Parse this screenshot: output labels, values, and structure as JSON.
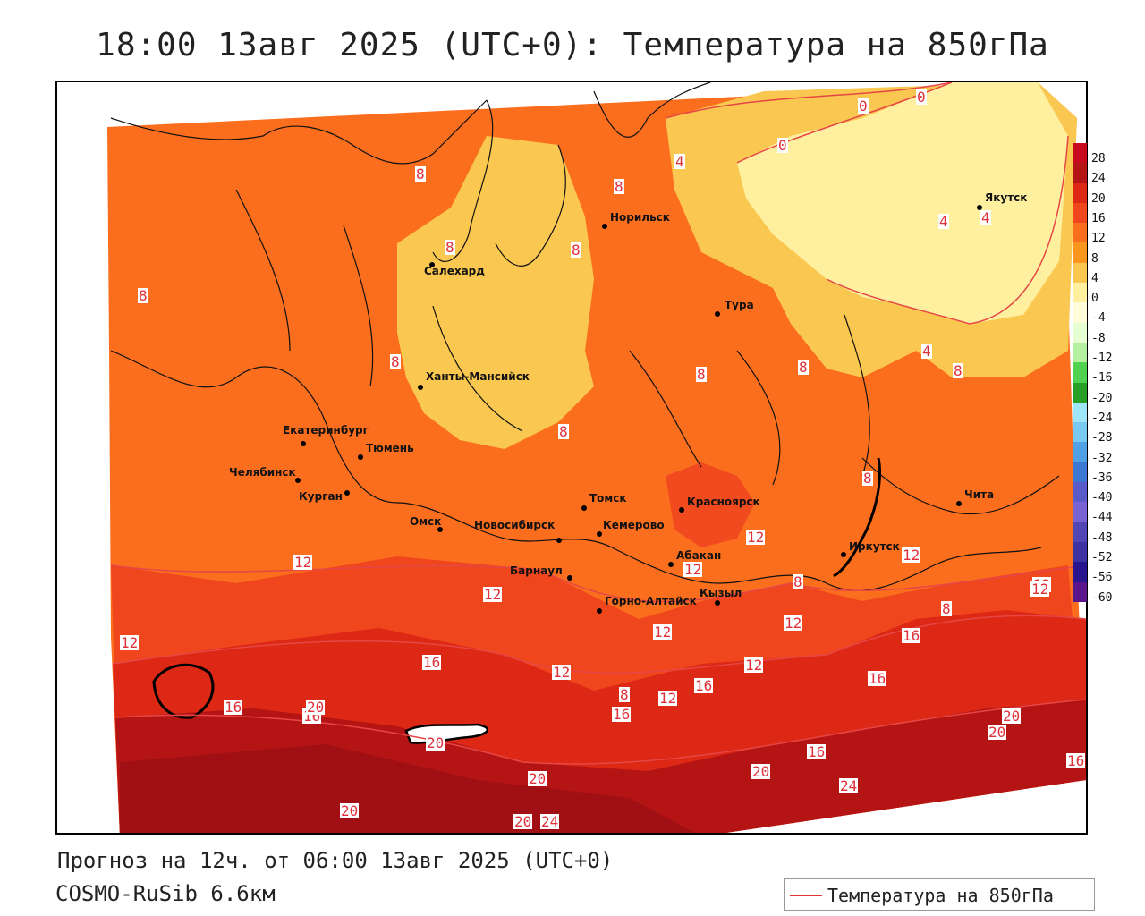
{
  "title": "18:00 13авг 2025 (UTC+0): Температура на 850гПа",
  "footer": {
    "forecast": "Прогноз на 12ч. от 06:00 13авг 2025 (UTC+0)",
    "model": "COSMO-RuSib 6.6км"
  },
  "legend": {
    "label": "Температура на 850гПа",
    "line_color": "#e03838"
  },
  "cities": [
    {
      "name": "Норильск"
    },
    {
      "name": "Якутск"
    },
    {
      "name": "Салехард"
    },
    {
      "name": "Тура"
    },
    {
      "name": "Ханты-Мансийск"
    },
    {
      "name": "Екатеринбург"
    },
    {
      "name": "Тюмень"
    },
    {
      "name": "Челябинск"
    },
    {
      "name": "Курган"
    },
    {
      "name": "Омск"
    },
    {
      "name": "Новосибирск"
    },
    {
      "name": "Томск"
    },
    {
      "name": "Кемерово"
    },
    {
      "name": "Красноярск"
    },
    {
      "name": "Абакан"
    },
    {
      "name": "Барнаул"
    },
    {
      "name": "Горно-Алтайск"
    },
    {
      "name": "Кызыл"
    },
    {
      "name": "Иркутск"
    },
    {
      "name": "Чита"
    }
  ],
  "contour_labels": [
    "0",
    "0",
    "0",
    "4",
    "4",
    "4",
    "4",
    "8",
    "8",
    "8",
    "8",
    "8",
    "8",
    "8",
    "8",
    "8",
    "8",
    "8",
    "8",
    "8",
    "8",
    "12",
    "12",
    "12",
    "12",
    "12",
    "12",
    "12",
    "12",
    "12",
    "12",
    "12",
    "12",
    "12",
    "12",
    "16",
    "16",
    "16",
    "16",
    "16",
    "16",
    "16",
    "16",
    "16",
    "20",
    "20",
    "20",
    "20",
    "20",
    "20",
    "20",
    "20",
    "24",
    "24"
  ],
  "colorbar": {
    "ticks": [
      "28",
      "24",
      "20",
      "16",
      "12",
      "8",
      "4",
      "0",
      "-4",
      "-8",
      "-12",
      "-16",
      "-20",
      "-24",
      "-28",
      "-32",
      "-36",
      "-40",
      "-44",
      "-48",
      "-52",
      "-56",
      "-60"
    ],
    "colors": [
      "#c80a1e",
      "#b41414",
      "#dc2814",
      "#f0461e",
      "#fa6e1e",
      "#fa961e",
      "#fac850",
      "#fff0a0",
      "#fffcdc",
      "#e6ffd2",
      "#b4f0a0",
      "#50d250",
      "#28a028",
      "#a0e6fa",
      "#78c8f0",
      "#50a0e6",
      "#3c78d2",
      "#5a5ac8",
      "#7864d2",
      "#5046b4",
      "#3c32a0",
      "#28148c",
      "#5a148c"
    ]
  }
}
